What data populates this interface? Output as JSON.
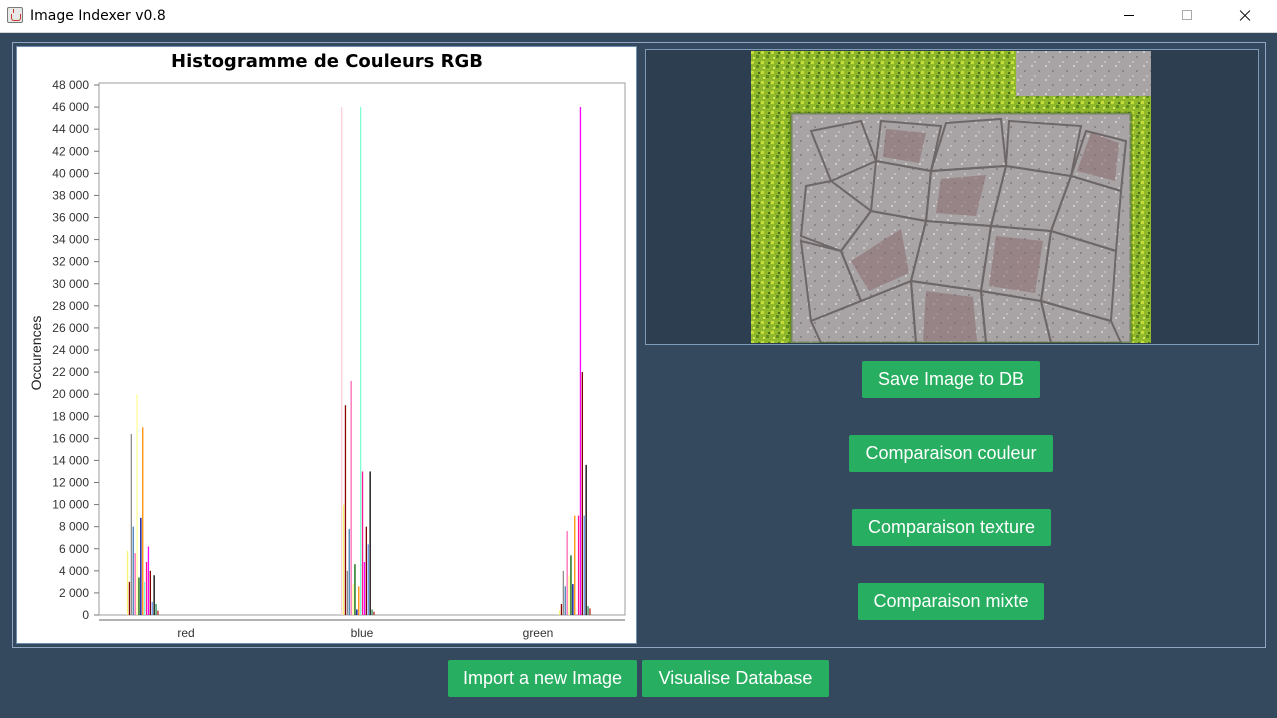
{
  "window": {
    "title": "Image Indexer v0.8"
  },
  "controls": {
    "minimize": "minimize",
    "maximize": "maximize",
    "close": "close"
  },
  "buttons": {
    "save": "Save Image to DB",
    "compare_color": "Comparaison couleur",
    "compare_texture": "Comparaison texture",
    "compare_mixed": "Comparaison mixte",
    "import": "Import a new Image",
    "visualise": "Visualise Database"
  },
  "chart_data": {
    "type": "bar",
    "title": "Histogramme de Couleurs RGB",
    "xlabel": "",
    "ylabel": "Occurences",
    "categories": [
      "red",
      "blue",
      "green"
    ],
    "ylim": [
      0,
      48000
    ],
    "yticks": [
      "0",
      "2 000",
      "4 000",
      "6 000",
      "8 000",
      "10 000",
      "12 000",
      "14 000",
      "16 000",
      "18 000",
      "20 000",
      "22 000",
      "24 000",
      "26 000",
      "28 000",
      "30 000",
      "32 000",
      "34 000",
      "36 000",
      "38 000",
      "40 000",
      "42 000",
      "44 000",
      "46 000",
      "48 000"
    ],
    "grid": false,
    "legend": "none",
    "colors": [
      "#ffd0d8",
      "#f5f570",
      "#8b0000",
      "#8e8e8e",
      "#4682b4",
      "#ff69b4",
      "#ffff99",
      "#006400",
      "#00008b",
      "#ff8c00",
      "#7fffd4",
      "#ff1493",
      "#ff00ff",
      "#800000",
      "#6495ed",
      "#000000",
      "#2e8b57",
      "#b22222"
    ],
    "series": [
      [
        0,
        46000,
        0
      ],
      [
        5800,
        10000,
        400
      ],
      [
        3000,
        19000,
        1000
      ],
      [
        16400,
        4000,
        4000
      ],
      [
        8000,
        7800,
        2600
      ],
      [
        5600,
        21200,
        7600
      ],
      [
        20000,
        2800,
        3600
      ],
      [
        3400,
        4600,
        5400
      ],
      [
        8800,
        500,
        2800
      ],
      [
        17000,
        2600,
        9000
      ],
      [
        3000,
        46000,
        0
      ],
      [
        4800,
        13000,
        9000
      ],
      [
        6200,
        4800,
        46000
      ],
      [
        4000,
        8000,
        22000
      ],
      [
        1200,
        6400,
        9000
      ],
      [
        3600,
        13000,
        13600
      ],
      [
        1000,
        500,
        800
      ],
      [
        400,
        300,
        600
      ]
    ]
  }
}
